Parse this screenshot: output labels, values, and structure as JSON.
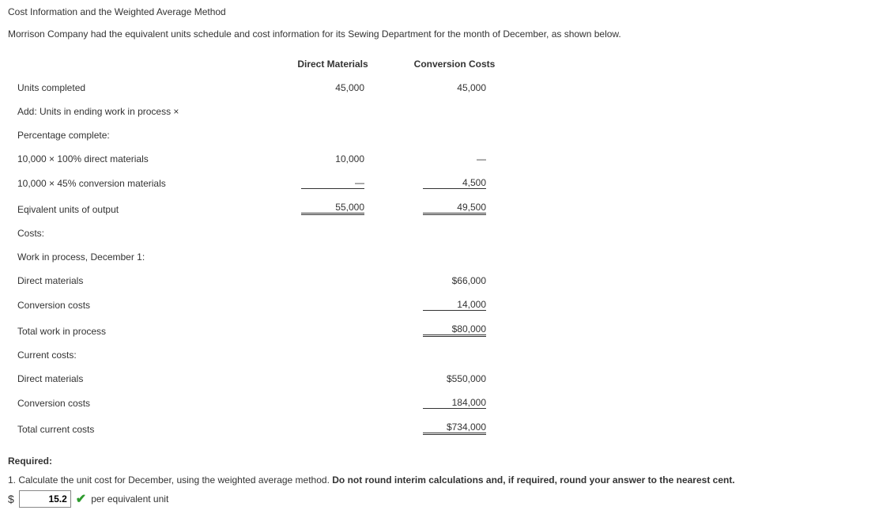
{
  "title": "Cost Information and the Weighted Average Method",
  "intro": "Morrison Company had the equivalent units schedule and cost information for its Sewing Department for the month of December, as shown below.",
  "headers": {
    "dm": "Direct Materials",
    "cc": "Conversion Costs"
  },
  "rows": {
    "units_completed": {
      "label": "Units completed",
      "dm": "45,000",
      "cc": "45,000"
    },
    "add_units": {
      "label": "Add: Units in ending work in process ×"
    },
    "pct_complete": {
      "label": "Percentage complete:"
    },
    "dm_calc": {
      "label": "10,000 × 100% direct materials",
      "dm": "10,000",
      "cc": "—"
    },
    "cc_calc": {
      "label": "10,000 × 45% conversion materials",
      "dm": "—",
      "cc": "4,500"
    },
    "equiv": {
      "label": "Eqivalent units of output",
      "dm": "55,000",
      "cc": "49,500"
    },
    "costs": {
      "label": "Costs:"
    },
    "wip_dec1": {
      "label": "Work in process, December 1:"
    },
    "wip_dm": {
      "label": "Direct materials",
      "cc": "$66,000"
    },
    "wip_cc": {
      "label": "Conversion costs",
      "cc": "14,000"
    },
    "wip_total": {
      "label": "Total work in process",
      "cc": "$80,000"
    },
    "current": {
      "label": "Current costs:"
    },
    "cur_dm": {
      "label": "Direct materials",
      "cc": "$550,000"
    },
    "cur_cc": {
      "label": "Conversion costs",
      "cc": "184,000"
    },
    "cur_total": {
      "label": "Total current costs",
      "cc": "$734,000"
    }
  },
  "required_label": "Required:",
  "q1_prefix": "1. Calculate the unit cost for December, using the weighted average method. ",
  "q1_bold": "Do not round interim calculations and, if required, round your answer to the nearest cent.",
  "answer": {
    "currency": "$",
    "value": "15.2",
    "suffix": "per equivalent unit"
  }
}
